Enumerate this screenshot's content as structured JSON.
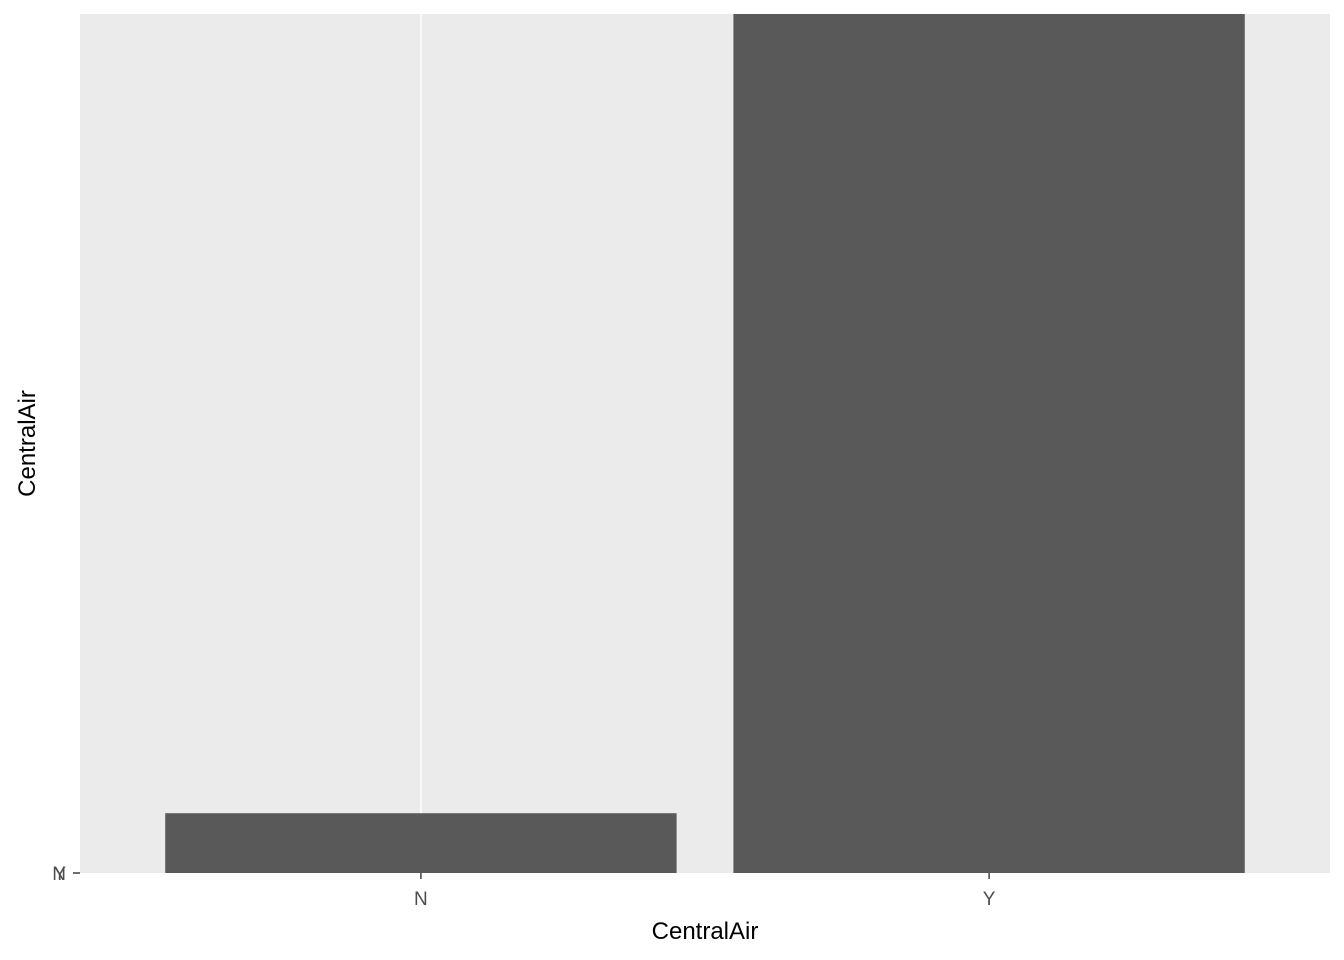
{
  "chart_data": {
    "type": "bar",
    "title": "",
    "xlabel": "CentralAir",
    "ylabel": "CentralAir",
    "categories": [
      "N",
      "Y"
    ],
    "values": [
      95,
      1365
    ],
    "ylim": [
      0,
      1365
    ],
    "y_tick_labels": [
      "N",
      "Y"
    ],
    "grid": true,
    "legend": "none",
    "colors": {
      "bar": "#595959",
      "panel": "#ebebeb",
      "grid": "#ffffff",
      "tick": "#333333"
    }
  }
}
